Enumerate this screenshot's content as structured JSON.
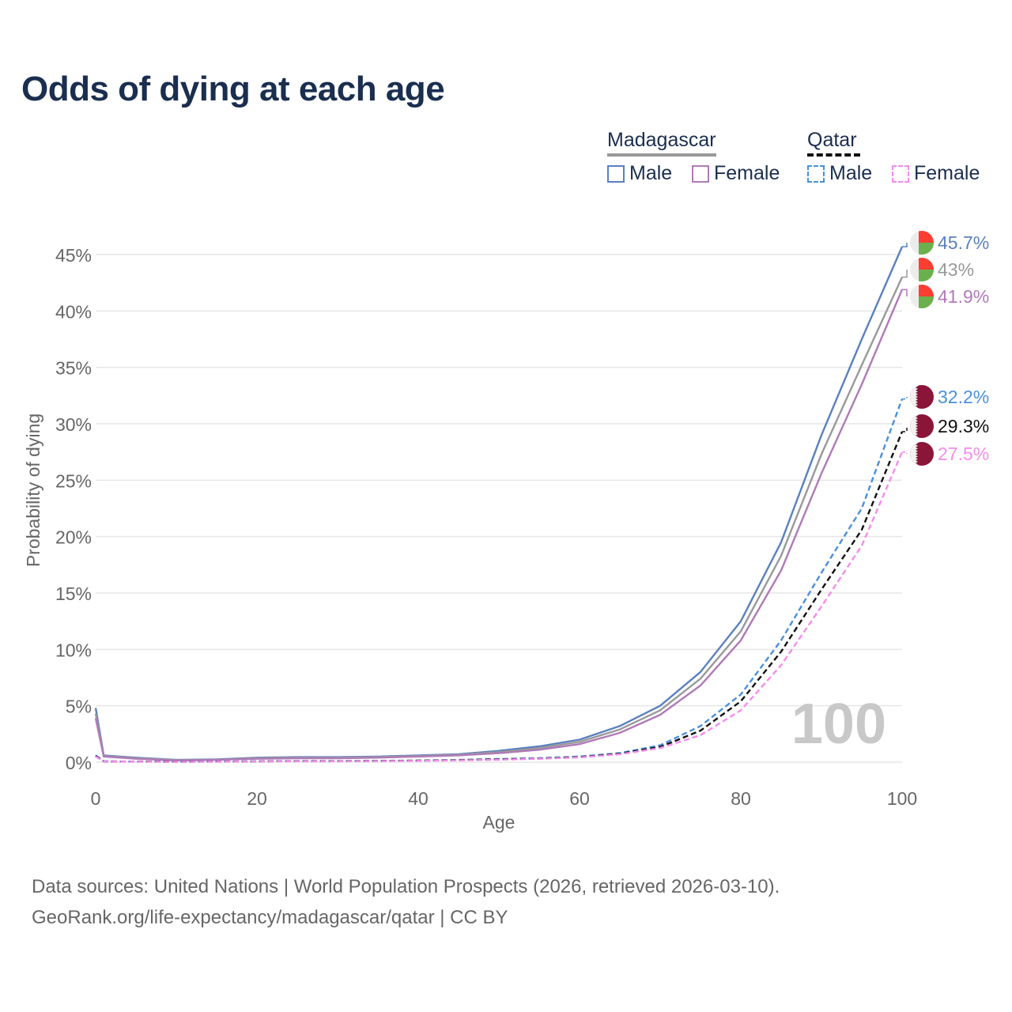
{
  "title": "Odds of dying at each age",
  "legend": {
    "groups": [
      {
        "name": "Madagascar",
        "line_color": "#999999",
        "dashed": false,
        "items": [
          {
            "label": "Male",
            "color": "#5a80c0"
          },
          {
            "label": "Female",
            "color": "#b07ab8"
          }
        ]
      },
      {
        "name": "Qatar",
        "line_color": "#111111",
        "dashed": true,
        "items": [
          {
            "label": "Male",
            "color": "#4a8fe0"
          },
          {
            "label": "Female",
            "color": "#f58cee"
          }
        ]
      }
    ]
  },
  "chart_data": {
    "type": "line",
    "title": "Odds of dying at each age",
    "xlabel": "Age",
    "ylabel": "Probability of dying",
    "xlim": [
      0,
      100
    ],
    "ylim": [
      0,
      45
    ],
    "xticks": [
      "0",
      "20",
      "40",
      "60",
      "80",
      "100"
    ],
    "xtick_values": [
      0,
      20,
      40,
      60,
      80,
      100
    ],
    "yticks": [
      "0%",
      "5%",
      "10%",
      "15%",
      "20%",
      "25%",
      "30%",
      "35%",
      "40%",
      "45%"
    ],
    "ytick_values": [
      0,
      5,
      10,
      15,
      20,
      25,
      30,
      35,
      40,
      45
    ],
    "grid": true,
    "watermark": "100",
    "x": [
      0,
      1,
      5,
      10,
      15,
      20,
      25,
      30,
      35,
      40,
      45,
      50,
      55,
      60,
      65,
      70,
      75,
      80,
      85,
      90,
      95,
      100
    ],
    "series": [
      {
        "name": "Madagascar Male",
        "country": "Madagascar",
        "color": "#5a80c0",
        "dashed": false,
        "end_label": "45.7%",
        "flag": "madagascar",
        "values": [
          4.8,
          0.6,
          0.4,
          0.2,
          0.25,
          0.4,
          0.45,
          0.45,
          0.5,
          0.6,
          0.7,
          1.0,
          1.4,
          2.0,
          3.2,
          5.0,
          8.0,
          12.5,
          19.5,
          29.0,
          37.5,
          45.7
        ]
      },
      {
        "name": "Madagascar Total",
        "country": "Madagascar",
        "color": "#999999",
        "dashed": false,
        "end_label": "43%",
        "flag": "madagascar",
        "values": [
          4.3,
          0.55,
          0.35,
          0.18,
          0.22,
          0.35,
          0.4,
          0.4,
          0.45,
          0.55,
          0.65,
          0.9,
          1.25,
          1.8,
          2.9,
          4.6,
          7.4,
          11.6,
          18.3,
          27.3,
          35.2,
          43.0
        ]
      },
      {
        "name": "Madagascar Female",
        "country": "Madagascar",
        "color": "#b07ab8",
        "dashed": false,
        "end_label": "41.9%",
        "flag": "madagascar",
        "values": [
          3.9,
          0.5,
          0.3,
          0.15,
          0.2,
          0.3,
          0.35,
          0.35,
          0.4,
          0.5,
          0.6,
          0.8,
          1.1,
          1.6,
          2.6,
          4.2,
          6.8,
          10.8,
          17.0,
          25.6,
          33.5,
          41.9
        ]
      },
      {
        "name": "Qatar Male",
        "country": "Qatar",
        "color": "#4a8fe0",
        "dashed": true,
        "end_label": "32.2%",
        "flag": "qatar",
        "values": [
          0.6,
          0.08,
          0.05,
          0.04,
          0.05,
          0.08,
          0.1,
          0.1,
          0.12,
          0.15,
          0.2,
          0.28,
          0.35,
          0.5,
          0.8,
          1.5,
          3.2,
          6.0,
          10.8,
          16.8,
          22.5,
          32.2
        ]
      },
      {
        "name": "Qatar Total",
        "country": "Qatar",
        "color": "#111111",
        "dashed": true,
        "end_label": "29.3%",
        "flag": "qatar",
        "values": [
          0.55,
          0.07,
          0.05,
          0.04,
          0.05,
          0.07,
          0.09,
          0.09,
          0.11,
          0.14,
          0.18,
          0.25,
          0.32,
          0.45,
          0.75,
          1.35,
          2.8,
          5.4,
          9.8,
          15.3,
          20.6,
          29.3
        ]
      },
      {
        "name": "Qatar Female",
        "country": "Qatar",
        "color": "#f58cee",
        "dashed": true,
        "end_label": "27.5%",
        "flag": "qatar",
        "values": [
          0.5,
          0.06,
          0.04,
          0.03,
          0.04,
          0.06,
          0.08,
          0.08,
          0.1,
          0.12,
          0.16,
          0.22,
          0.3,
          0.42,
          0.7,
          1.25,
          2.4,
          4.6,
          8.6,
          13.8,
          19.2,
          27.5
        ]
      }
    ]
  },
  "footer": {
    "source_line": "Data sources: United Nations | World Population Prospects (2026, retrieved 2026-03-10).",
    "credit_line": "GeoRank.org/life-expectancy/madagascar/qatar | CC BY"
  }
}
